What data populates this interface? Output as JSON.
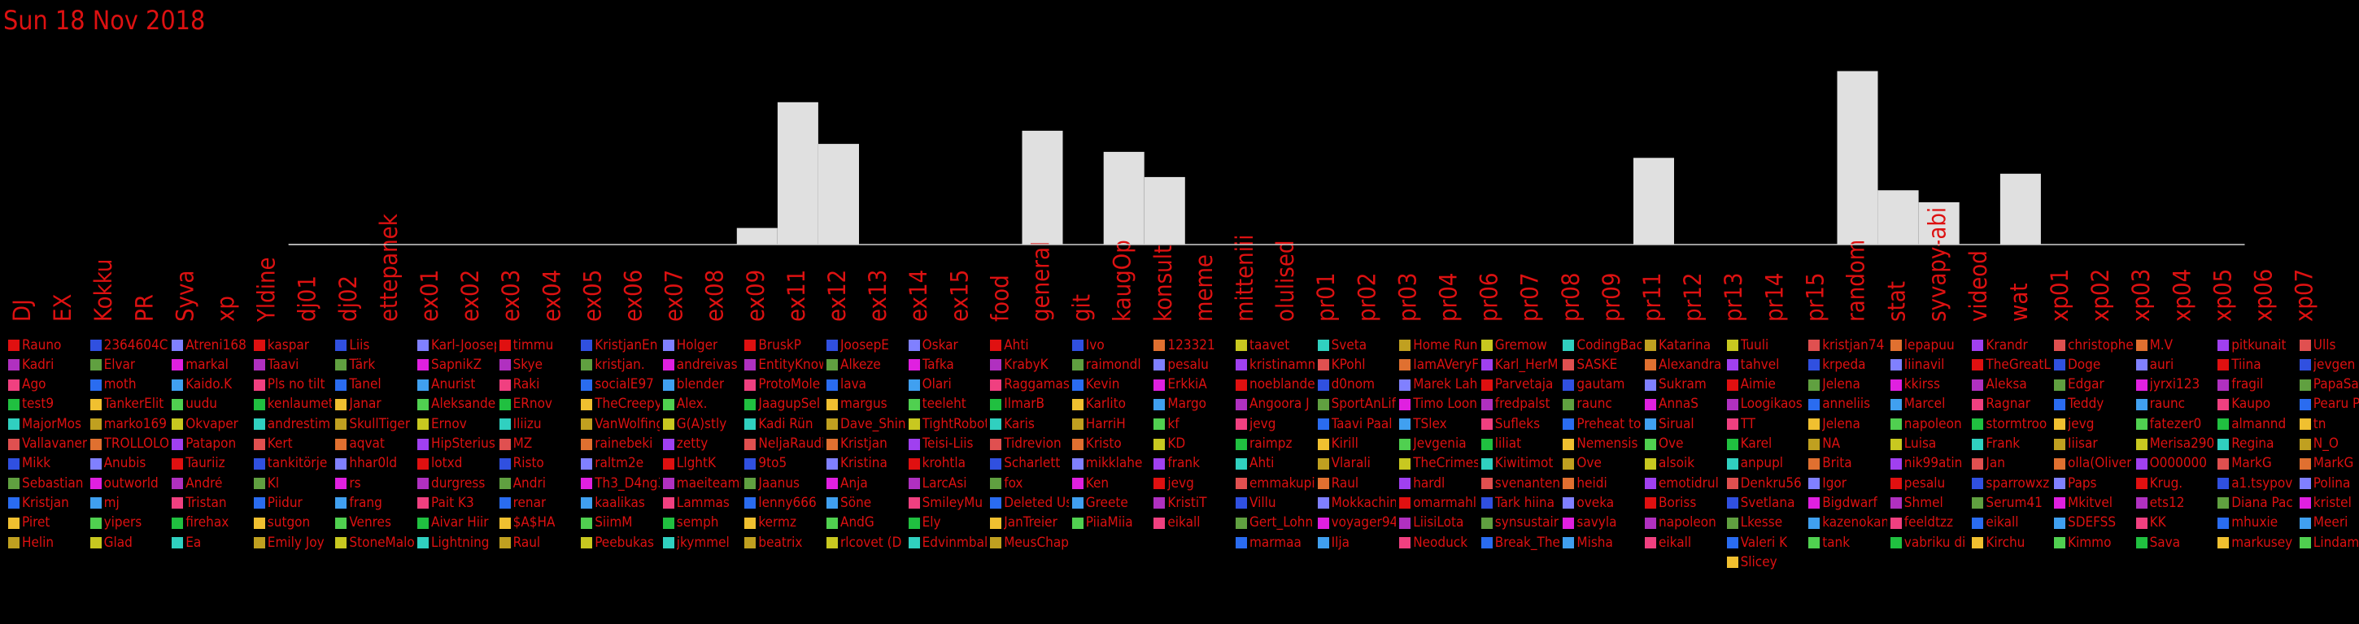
{
  "date_label": "Sun 18 Nov 2018",
  "colors": {
    "text": "#dd1111",
    "bar": "#e0e0e0",
    "baseline": "#d0d0d0",
    "background": "#000000"
  },
  "chart_data": {
    "type": "bar",
    "categories": [
      "DJ",
      "EX",
      "Kokku",
      "PR",
      "Syva",
      "xp",
      "Yldine",
      "dj01",
      "dj02",
      "ettepanek",
      "ex01",
      "ex02",
      "ex03",
      "ex04",
      "ex05",
      "ex06",
      "ex07",
      "ex08",
      "ex09",
      "ex11",
      "ex12",
      "ex13",
      "ex14",
      "ex15",
      "food",
      "general",
      "git",
      "kaugOp",
      "konsult",
      "meme",
      "mitteniii",
      "olulised",
      "pr01",
      "pr02",
      "pr03",
      "pr04",
      "pr06",
      "pr07",
      "pr08",
      "pr09",
      "pr11",
      "pr12",
      "pr13",
      "pr14",
      "pr15",
      "random",
      "stat",
      "syvapy-abi",
      "videod",
      "wat",
      "xp01",
      "xp02",
      "xp03",
      "xp04",
      "xp05",
      "xp06",
      "xp07"
    ],
    "values": [
      0,
      0,
      0,
      0,
      0,
      0,
      0,
      1,
      1,
      0,
      0,
      0,
      0,
      0,
      0,
      0,
      0,
      0,
      25,
      215,
      152,
      0,
      0,
      0,
      0,
      172,
      0,
      140,
      102,
      0,
      0,
      0,
      0,
      0,
      0,
      0,
      0,
      0,
      0,
      0,
      131,
      0,
      0,
      0,
      0,
      262,
      82,
      64,
      0,
      107,
      0,
      0,
      0,
      0,
      0,
      0,
      0
    ],
    "ylim": [
      0,
      270
    ],
    "grid": false,
    "legend": "none"
  },
  "users": [
    [
      "Rauno",
      "Kadri",
      "Ago",
      "test9",
      "MajorMos",
      "Vallavanem",
      "Mikk",
      "Sebastian",
      "Kristjan",
      "Piret",
      "Helin"
    ],
    [
      "2364604C",
      "Elvar",
      "moth",
      "TankerElit",
      "marko169",
      "TROLLOLOL",
      "Anubis",
      "outworld",
      "mj",
      "yipers",
      "Glad"
    ],
    [
      "Atreni168",
      "markal",
      "Kaido.K",
      "uudu",
      "Okvaper",
      "Patapon",
      "Tauriiz",
      "André",
      "Tristan",
      "firehax",
      "Ea"
    ],
    [
      "kaspar",
      "Taavi",
      "Pls no tilt",
      "kenlaumet",
      "andrestim",
      "Kert",
      "tankitörje",
      "Kl",
      "Piidur",
      "sutgon",
      "Emily Joy"
    ],
    [
      "Liis",
      "Tärk",
      "Tanel",
      "Janar",
      "SkullTiger",
      "aqvat",
      "hhar0ld",
      "rs",
      "frang",
      "Venres",
      "StoneMalo"
    ],
    [
      "Karl-Joosep",
      "SapnikZ",
      "Anurist",
      "Aleksander",
      "Ernov",
      "HipSterius",
      "lotxd",
      "durgress",
      "Pait K3",
      "Aivar Hiir",
      "Lightning"
    ],
    [
      "timmu",
      "Skye",
      "Raki",
      "ERnov",
      "Iliizu",
      "MZ",
      "Risto",
      "Andri",
      "renar",
      "$A$HA",
      "Raul"
    ],
    [
      "KristjanEn",
      "kristjan.",
      "socialE97",
      "TheCreepy",
      "VanWolfing",
      "rainebeki",
      "raltm2e",
      "Th3_D4ng3",
      "kaalikas",
      "SiimM",
      "Peebukas"
    ],
    [
      "Holger",
      "andreivas",
      "blender",
      "Alex.",
      "G(A)stly",
      "zetty",
      "LlghtK",
      "maeiteami",
      "Lammas",
      "semph",
      "jkymmel"
    ],
    [
      "BruskP",
      "EntityKnow",
      "ProtoMole",
      "JaagupSel",
      "Kadi Rün",
      "NeljaRaudi",
      "9to5",
      "Jaanus",
      "lenny666",
      "kermz",
      "beatrix"
    ],
    [
      "JoosepE",
      "Alkeze",
      "lava",
      "margus",
      "Dave_Shin",
      "Kristjan",
      "Kristina",
      "Anja",
      "Söne",
      "AndG",
      "rlcovet (D"
    ],
    [
      "Oskar",
      "Tafka",
      "Olari",
      "teeleht",
      "TightRobot",
      "Teisi-Liis",
      "krohtla",
      "LarcAsi",
      "SmileyMu",
      "Ely",
      "Edvinmbal"
    ],
    [
      "Ahti",
      "KrabyK",
      "Raggamas",
      "IlmarB",
      "Karis",
      "Tidrevion",
      "Scharlett",
      "fox",
      "Deleted Us",
      "JanTreier",
      "MeusChap"
    ],
    [
      "Ivo",
      "raimondl",
      "Kevin",
      "Karlito",
      "HarriH",
      "Kristo",
      "mikklahe",
      "Ken",
      "Greete",
      "PiiaMiia"
    ],
    [
      "123321",
      "pesalu",
      "ErkkiA",
      "Margo",
      "kf",
      "KD",
      "frank",
      "jevg",
      "KristiT",
      "eikall"
    ],
    [
      "taavet",
      "kristinamm",
      "noeblande",
      "Angoora J",
      "jevg",
      "raimpz",
      "Ahti",
      "emmakupi",
      "Villu",
      "Gert_Lohn",
      "marmaa"
    ],
    [
      "Sveta",
      "KPohl",
      "d0nom",
      "SportAnLif",
      "Taavi Paal",
      "Kirill",
      "Vlarali",
      "Raul",
      "Mokkachin",
      "voyager94",
      "Ilja"
    ],
    [
      "Home Run",
      "IamAVeryF",
      "Marek Lah",
      "Timo Loon",
      "TSlex",
      "Jevgenia",
      "TheCrimes",
      "hardl",
      "omarmahl",
      "LiisiLota",
      "Neoduck"
    ],
    [
      "Gremow",
      "Karl_HerM",
      "Parvetaja",
      "fredpalst",
      "Sufleks",
      "liliat",
      "Kiwitimot",
      "svenanten",
      "Tark hiina",
      "synsustair",
      "Break_The"
    ],
    [
      "CodingBad",
      "SASKE",
      "gautam",
      "raunc",
      "Preheat to",
      "Nemensis",
      "Ove",
      "heidi",
      "oveka",
      "savyla",
      "Misha"
    ],
    [
      "Katarina",
      "Alexandra",
      "Sukram",
      "AnnaS",
      "Sirual",
      "Ove",
      "alsoik",
      "emotidrul",
      "Boriss",
      "napoleon",
      "eikall"
    ],
    [
      "Tuuli",
      "tahvel",
      "Aimie",
      "Loogikaos",
      "TT",
      "Karel",
      "anpupl",
      "Denkru56",
      "Svetlana",
      "Lkesse",
      "Valeri K",
      "Slicey"
    ],
    [
      "kristjan74",
      "krpeda",
      "Jelena",
      "anneliis",
      "Jelena",
      "NA",
      "Brita",
      "Igor",
      "Bigdwarf",
      "kazenokan",
      "tank"
    ],
    [
      "lepapuu",
      "Iiinavil",
      "kkirss",
      "Marcel",
      "napoleon",
      "Luisa",
      "nik99atin",
      "pesalu",
      "Shmel",
      "feeldtzz",
      "vabriku di"
    ],
    [
      "Krandr",
      "TheGreatL",
      "Aleksa",
      "Ragnar",
      "stormtroo",
      "Frank",
      "Jan",
      "sparrowxz",
      "Serum41",
      "eikall",
      "Kirchu"
    ],
    [
      "christophe",
      "Doge",
      "Edgar",
      "Teddy",
      "jevg",
      "Iiisar",
      "olla(Oliver",
      "Paps",
      "Mkitvel",
      "SDEFSS",
      "Kimmo"
    ],
    [
      "M.V",
      "auri",
      "jyrxi123",
      "raunc",
      "fatezer0",
      "Merisa290",
      "O000000",
      "Krug.",
      "ets12",
      "KK",
      "Sava"
    ],
    [
      "pitkunait",
      "Tiina",
      "fragil",
      "Kaupo",
      "almannd",
      "Regina",
      "MarkG",
      "a1.tsypov",
      "Diana Pac",
      "mhuxie",
      "markusey"
    ],
    [
      "Ulls",
      "jevgen",
      "PapaSay",
      "Pearu Pu",
      "tn",
      "N_O",
      "MarkG",
      "Polina",
      "kristel",
      "Meeri",
      "Lindama"
    ]
  ]
}
